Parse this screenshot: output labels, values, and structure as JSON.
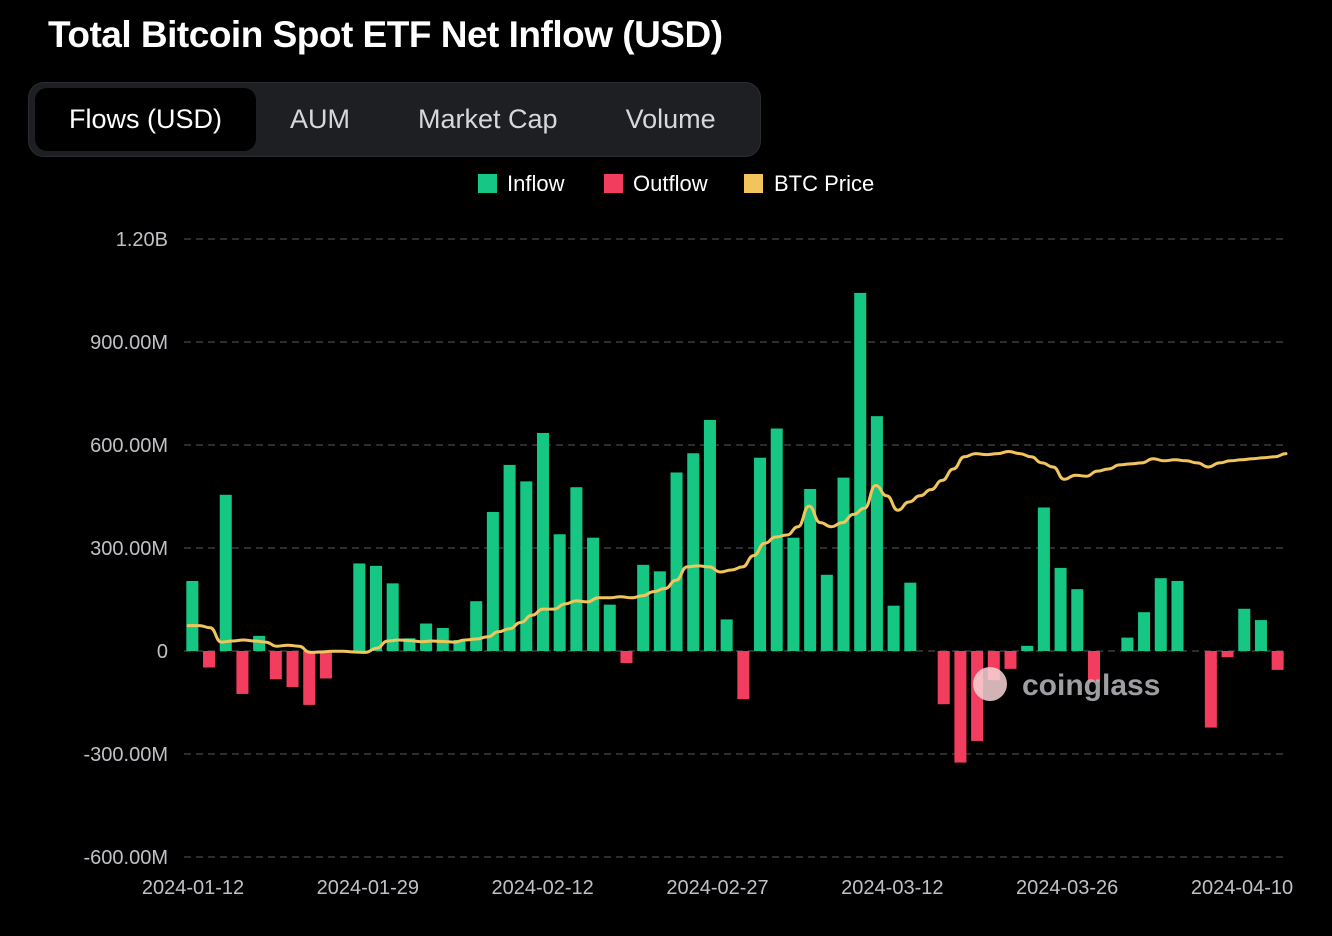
{
  "title": "Total Bitcoin Spot ETF Net Inflow (USD)",
  "tabs": [
    {
      "label": "Flows (USD)",
      "active": true
    },
    {
      "label": "AUM",
      "active": false
    },
    {
      "label": "Market Cap",
      "active": false
    },
    {
      "label": "Volume",
      "active": false
    }
  ],
  "watermark": "coinglass",
  "colors": {
    "inflow": "#16c784",
    "outflow": "#f23d5e",
    "price": "#f1c55c",
    "grid": "#3a3c40"
  },
  "chart_data": {
    "type": "bar",
    "legend": [
      {
        "name": "Inflow",
        "color": "#16c784"
      },
      {
        "name": "Outflow",
        "color": "#f23d5e"
      },
      {
        "name": "BTC Price",
        "color": "#f1c55c"
      }
    ],
    "legend_position": "top-center",
    "y_ticks": [
      "1.20B",
      "900.00M",
      "600.00M",
      "300.00M",
      "0",
      "-300.00M",
      "-600.00M"
    ],
    "ylim": [
      -600,
      1200
    ],
    "y_units": "M USD",
    "x_ticks": [
      "2024-01-12",
      "2024-01-29",
      "2024-02-12",
      "2024-02-27",
      "2024-03-12",
      "2024-03-26",
      "2024-04-10"
    ],
    "grid": true,
    "series": [
      {
        "name": "Net Flow",
        "values": [
          204,
          -48,
          455,
          -125,
          44,
          -82,
          -105,
          -157,
          -80,
          0,
          255,
          248,
          197,
          37,
          80,
          67,
          32,
          145,
          405,
          542,
          494,
          635,
          340,
          477,
          330,
          135,
          -35,
          251,
          232,
          520,
          576,
          673,
          92,
          -140,
          563,
          648,
          330,
          472,
          222,
          505,
          1043,
          684,
          132,
          199,
          0,
          -155,
          -325,
          -262,
          -85,
          -52,
          15,
          418,
          242,
          180,
          -90,
          0,
          39,
          113,
          212,
          204,
          0,
          -223,
          -18,
          123,
          90,
          -55
        ]
      },
      {
        "name": "BTC Price",
        "values": [
          0.64,
          0.64,
          0.63,
          0.56,
          0.565,
          0.57,
          0.565,
          0.56,
          0.54,
          0.545,
          0.54,
          0.51,
          0.512,
          0.515,
          0.515,
          0.512,
          0.51,
          0.53,
          0.565,
          0.57,
          0.567,
          0.562,
          0.565,
          0.563,
          0.56,
          0.57,
          0.575,
          0.585,
          0.61,
          0.625,
          0.655,
          0.69,
          0.72,
          0.72,
          0.745,
          0.76,
          0.755,
          0.775,
          0.775,
          0.78,
          0.775,
          0.785,
          0.805,
          0.82,
          0.86,
          0.925,
          0.93,
          0.925,
          0.9,
          0.91,
          0.925,
          0.98,
          1.04,
          1.07,
          1.08,
          1.12,
          1.22,
          1.14,
          1.12,
          1.14,
          1.18,
          1.21,
          1.32,
          1.27,
          1.2,
          1.24,
          1.27,
          1.3,
          1.345,
          1.4,
          1.46,
          1.475,
          1.47,
          1.475,
          1.485,
          1.475,
          1.46,
          1.43,
          1.41,
          1.35,
          1.37,
          1.365,
          1.39,
          1.4,
          1.42,
          1.425,
          1.43,
          1.45,
          1.44,
          1.445,
          1.44,
          1.43,
          1.41,
          1.43,
          1.44,
          1.445,
          1.45,
          1.455,
          1.46,
          1.475
        ]
      }
    ]
  }
}
